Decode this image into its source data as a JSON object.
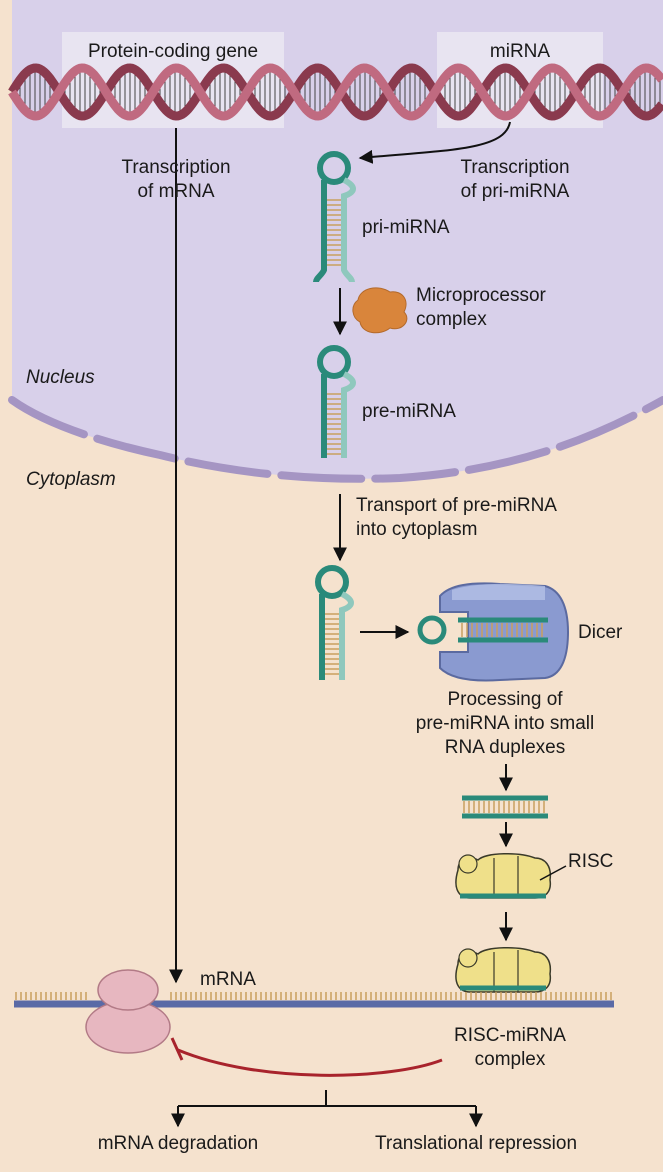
{
  "genes": {
    "protein_coding": "Protein-coding gene",
    "mirna": "miRNA"
  },
  "labels": {
    "transcription_mrna_1": "Transcription",
    "transcription_mrna_2": "of mRNA",
    "transcription_pri_1": "Transcription",
    "transcription_pri_2": "of pri-miRNA",
    "pri_mirna": "pri-miRNA",
    "microprocessor_1": "Microprocessor",
    "microprocessor_2": "complex",
    "nucleus": "Nucleus",
    "pre_mirna": "pre-miRNA",
    "cytoplasm": "Cytoplasm",
    "transport_1": "Transport of pre-miRNA",
    "transport_2": "into cytoplasm",
    "dicer": "Dicer",
    "processing_1": "Processing of",
    "processing_2": "pre-miRNA into small",
    "processing_3": "RNA duplexes",
    "risc": "RISC",
    "mrna": "mRNA",
    "risc_complex_1": "RISC-miRNA",
    "risc_complex_2": "complex",
    "outcome_degradation": "mRNA degradation",
    "outcome_repression": "Translational repression"
  },
  "colors": {
    "nucleus_fill": "#d8d0ea",
    "cytoplasm_fill": "#f5e2ce",
    "nuclear_envelope": "#a595c3",
    "dna_strand": "#b0566b",
    "rna_hairpin": "#2a8a7a",
    "dicer": "#8a9ad0",
    "risc": "#efe08a",
    "microprocessor": "#d9853b",
    "ribosome": "#e7b7c0",
    "mrna_strand": "#5a6aa6",
    "inhibition": "#a8232c"
  }
}
